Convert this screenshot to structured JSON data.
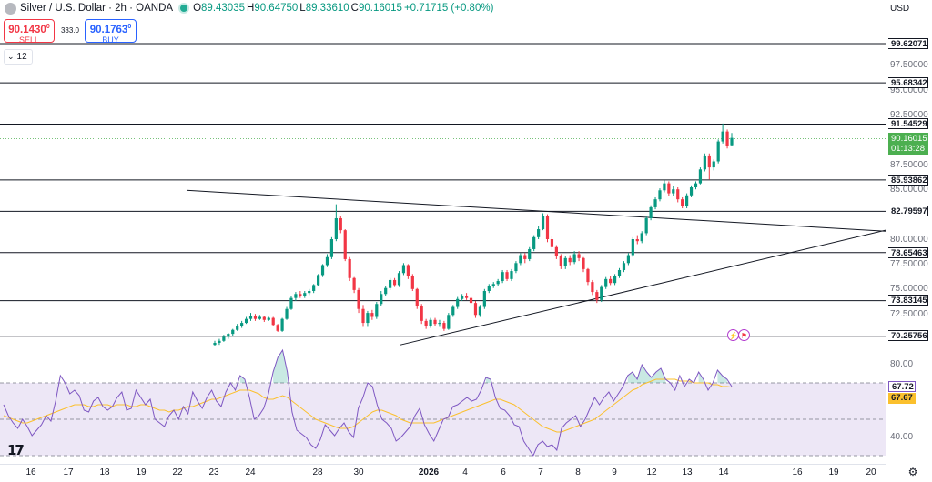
{
  "header": {
    "title": "Silver / U.S. Dollar · 2h · OANDA",
    "ohlc": [
      {
        "key": "O",
        "value": "89.43035"
      },
      {
        "key": "H",
        "value": "90.64750"
      },
      {
        "key": "L",
        "value": "89.33610"
      },
      {
        "key": "C",
        "value": "90.16015"
      }
    ],
    "change": "+0.71715 (+0.80%)"
  },
  "trade": {
    "sell_price": "90.1430",
    "sell_sup": "0",
    "sell_label": "SELL",
    "spread": "333.0",
    "buy_price": "90.1763",
    "buy_sup": "0",
    "buy_label": "BUY"
  },
  "interval_value": "12",
  "currency": "USD",
  "colors": {
    "up": "#089981",
    "down": "#f23645",
    "rsi": "#7e57c2",
    "rsi_ma": "#fbc02d",
    "rsi_band": "#ede7f6",
    "price_tag": "#4caf50"
  },
  "price_axis_labels": [
    "97.50000",
    "95.00000",
    "92.50000",
    "87.50000",
    "85.00000",
    "80.00000",
    "77.50000",
    "75.00000",
    "72.50000"
  ],
  "level_tags": [
    "99.62071",
    "95.68342",
    "91.54529",
    "85.93862",
    "82.79597",
    "78.65463",
    "73.83145",
    "70.25756"
  ],
  "current_price_tag": {
    "price": "90.16015",
    "countdown": "01:13:28"
  },
  "rsi_axis_labels": [
    "80.00",
    "40.00"
  ],
  "rsi_tags": {
    "rsi": "67.72",
    "ma": "67.67"
  },
  "x_axis_labels": [
    "16",
    "17",
    "18",
    "19",
    "22",
    "23",
    "24",
    "28",
    "30",
    "2026",
    "4",
    "6",
    "7",
    "8",
    "9",
    "12",
    "13",
    "14",
    "16",
    "19",
    "20"
  ],
  "chart_data": {
    "type": "candlestick",
    "price_range": [
      69.4,
      101.0
    ],
    "horizontal_levels": [
      99.62071,
      95.68342,
      91.54529,
      85.93862,
      82.79597,
      78.65463,
      73.83145,
      70.25756
    ],
    "trendlines": [
      {
        "name": "",
        "from": [
          "Dec 22",
          84.9
        ],
        "to": [
          "Jan 20",
          80.8
        ]
      },
      {
        "name": "",
        "from": [
          "Dec 30",
          69.4
        ],
        "to": [
          "Jan 20",
          80.9
        ]
      }
    ],
    "candles": [
      {
        "o": 69.4,
        "c": 69.6,
        "h": 69.8,
        "l": 69.3
      },
      {
        "o": 69.6,
        "c": 69.8,
        "h": 70.0,
        "l": 69.4
      },
      {
        "o": 69.8,
        "c": 70.2,
        "h": 70.4,
        "l": 69.7
      },
      {
        "o": 70.2,
        "c": 70.5,
        "h": 70.6,
        "l": 70.0
      },
      {
        "o": 70.5,
        "c": 70.9,
        "h": 71.0,
        "l": 70.3
      },
      {
        "o": 70.9,
        "c": 71.3,
        "h": 71.5,
        "l": 70.8
      },
      {
        "o": 71.3,
        "c": 71.6,
        "h": 71.8,
        "l": 71.1
      },
      {
        "o": 71.6,
        "c": 72.0,
        "h": 72.2,
        "l": 71.5
      },
      {
        "o": 72.0,
        "c": 72.3,
        "h": 72.6,
        "l": 71.8
      },
      {
        "o": 72.3,
        "c": 72.0,
        "h": 72.5,
        "l": 71.8
      },
      {
        "o": 72.0,
        "c": 72.2,
        "h": 72.4,
        "l": 71.9
      },
      {
        "o": 72.2,
        "c": 71.9,
        "h": 72.3,
        "l": 71.7
      },
      {
        "o": 71.9,
        "c": 72.1,
        "h": 72.2,
        "l": 71.8
      },
      {
        "o": 72.1,
        "c": 71.4,
        "h": 72.2,
        "l": 71.3
      },
      {
        "o": 71.4,
        "c": 70.8,
        "h": 71.5,
        "l": 70.7
      },
      {
        "o": 70.8,
        "c": 72.0,
        "h": 72.1,
        "l": 70.7
      },
      {
        "o": 72.0,
        "c": 73.0,
        "h": 73.2,
        "l": 71.9
      },
      {
        "o": 73.0,
        "c": 74.1,
        "h": 74.3,
        "l": 72.9
      },
      {
        "o": 74.1,
        "c": 74.5,
        "h": 74.7,
        "l": 73.8
      },
      {
        "o": 74.5,
        "c": 74.3,
        "h": 74.8,
        "l": 74.1
      },
      {
        "o": 74.3,
        "c": 74.6,
        "h": 74.8,
        "l": 74.1
      },
      {
        "o": 74.6,
        "c": 74.8,
        "h": 75.0,
        "l": 74.4
      },
      {
        "o": 74.8,
        "c": 75.4,
        "h": 75.5,
        "l": 74.6
      },
      {
        "o": 75.4,
        "c": 76.4,
        "h": 76.5,
        "l": 75.3
      },
      {
        "o": 76.4,
        "c": 77.4,
        "h": 77.5,
        "l": 76.2
      },
      {
        "o": 77.4,
        "c": 78.2,
        "h": 78.5,
        "l": 77.2
      },
      {
        "o": 78.2,
        "c": 80.0,
        "h": 80.2,
        "l": 78.0
      },
      {
        "o": 80.0,
        "c": 82.1,
        "h": 83.5,
        "l": 79.8
      },
      {
        "o": 82.1,
        "c": 80.9,
        "h": 82.3,
        "l": 80.6
      },
      {
        "o": 80.9,
        "c": 78.0,
        "h": 81.0,
        "l": 77.8
      },
      {
        "o": 78.0,
        "c": 76.1,
        "h": 78.2,
        "l": 75.8
      },
      {
        "o": 76.1,
        "c": 74.9,
        "h": 76.2,
        "l": 74.6
      },
      {
        "o": 74.9,
        "c": 73.0,
        "h": 75.1,
        "l": 72.6
      },
      {
        "o": 73.0,
        "c": 71.6,
        "h": 73.4,
        "l": 71.2
      },
      {
        "o": 71.6,
        "c": 72.6,
        "h": 72.8,
        "l": 71.2
      },
      {
        "o": 72.6,
        "c": 72.2,
        "h": 72.9,
        "l": 71.9
      },
      {
        "o": 72.2,
        "c": 73.5,
        "h": 73.7,
        "l": 72.0
      },
      {
        "o": 73.5,
        "c": 74.5,
        "h": 74.8,
        "l": 73.3
      },
      {
        "o": 74.5,
        "c": 75.1,
        "h": 75.3,
        "l": 74.3
      },
      {
        "o": 75.1,
        "c": 75.9,
        "h": 76.1,
        "l": 74.9
      },
      {
        "o": 75.9,
        "c": 75.4,
        "h": 76.1,
        "l": 75.2
      },
      {
        "o": 75.4,
        "c": 76.6,
        "h": 76.8,
        "l": 75.2
      },
      {
        "o": 76.6,
        "c": 77.4,
        "h": 77.6,
        "l": 76.4
      },
      {
        "o": 77.4,
        "c": 76.3,
        "h": 77.5,
        "l": 76.0
      },
      {
        "o": 76.3,
        "c": 75.0,
        "h": 76.5,
        "l": 74.8
      },
      {
        "o": 75.0,
        "c": 73.3,
        "h": 75.1,
        "l": 73.0
      },
      {
        "o": 73.3,
        "c": 71.8,
        "h": 73.5,
        "l": 71.5
      },
      {
        "o": 71.8,
        "c": 71.3,
        "h": 72.0,
        "l": 71.0
      },
      {
        "o": 71.3,
        "c": 71.9,
        "h": 72.1,
        "l": 71.1
      },
      {
        "o": 71.9,
        "c": 71.5,
        "h": 72.1,
        "l": 71.3
      },
      {
        "o": 71.5,
        "c": 71.6,
        "h": 71.9,
        "l": 71.2
      },
      {
        "o": 71.6,
        "c": 71.0,
        "h": 71.8,
        "l": 70.8
      },
      {
        "o": 71.0,
        "c": 72.4,
        "h": 72.6,
        "l": 70.9
      },
      {
        "o": 72.4,
        "c": 73.2,
        "h": 73.4,
        "l": 72.2
      },
      {
        "o": 73.2,
        "c": 74.0,
        "h": 74.2,
        "l": 73.0
      },
      {
        "o": 74.0,
        "c": 74.3,
        "h": 74.5,
        "l": 73.8
      },
      {
        "o": 74.3,
        "c": 74.1,
        "h": 74.6,
        "l": 73.9
      },
      {
        "o": 74.1,
        "c": 73.6,
        "h": 74.3,
        "l": 73.3
      },
      {
        "o": 73.6,
        "c": 72.4,
        "h": 73.8,
        "l": 72.1
      },
      {
        "o": 72.4,
        "c": 73.2,
        "h": 73.4,
        "l": 72.2
      },
      {
        "o": 73.2,
        "c": 74.8,
        "h": 75.0,
        "l": 73.0
      },
      {
        "o": 74.8,
        "c": 75.3,
        "h": 75.5,
        "l": 74.6
      },
      {
        "o": 75.3,
        "c": 75.5,
        "h": 75.7,
        "l": 75.1
      },
      {
        "o": 75.5,
        "c": 75.8,
        "h": 76.0,
        "l": 75.3
      },
      {
        "o": 75.8,
        "c": 76.7,
        "h": 76.9,
        "l": 75.6
      },
      {
        "o": 76.7,
        "c": 76.0,
        "h": 76.9,
        "l": 75.8
      },
      {
        "o": 76.0,
        "c": 76.8,
        "h": 77.0,
        "l": 75.8
      },
      {
        "o": 76.8,
        "c": 77.6,
        "h": 77.8,
        "l": 76.6
      },
      {
        "o": 77.6,
        "c": 78.4,
        "h": 78.6,
        "l": 77.4
      },
      {
        "o": 78.4,
        "c": 78.0,
        "h": 78.6,
        "l": 77.6
      },
      {
        "o": 78.0,
        "c": 79.0,
        "h": 79.2,
        "l": 77.8
      },
      {
        "o": 79.0,
        "c": 80.2,
        "h": 80.4,
        "l": 78.8
      },
      {
        "o": 80.2,
        "c": 81.0,
        "h": 81.3,
        "l": 80.0
      },
      {
        "o": 81.0,
        "c": 82.3,
        "h": 82.6,
        "l": 80.9
      },
      {
        "o": 82.3,
        "c": 80.0,
        "h": 82.5,
        "l": 79.7
      },
      {
        "o": 80.0,
        "c": 79.2,
        "h": 80.3,
        "l": 78.9
      },
      {
        "o": 79.2,
        "c": 78.3,
        "h": 79.4,
        "l": 78.0
      },
      {
        "o": 78.3,
        "c": 77.3,
        "h": 78.5,
        "l": 77.0
      },
      {
        "o": 77.3,
        "c": 78.1,
        "h": 78.3,
        "l": 77.0
      },
      {
        "o": 78.1,
        "c": 77.7,
        "h": 78.4,
        "l": 77.4
      },
      {
        "o": 77.7,
        "c": 78.5,
        "h": 78.8,
        "l": 77.5
      },
      {
        "o": 78.5,
        "c": 78.1,
        "h": 78.8,
        "l": 77.8
      },
      {
        "o": 78.1,
        "c": 77.0,
        "h": 78.2,
        "l": 76.7
      },
      {
        "o": 77.0,
        "c": 75.7,
        "h": 77.1,
        "l": 75.4
      },
      {
        "o": 75.7,
        "c": 74.7,
        "h": 75.9,
        "l": 74.4
      },
      {
        "o": 74.7,
        "c": 73.9,
        "h": 74.9,
        "l": 73.6
      },
      {
        "o": 73.9,
        "c": 75.2,
        "h": 75.4,
        "l": 73.7
      },
      {
        "o": 75.2,
        "c": 76.0,
        "h": 76.2,
        "l": 75.0
      },
      {
        "o": 76.0,
        "c": 75.6,
        "h": 76.3,
        "l": 75.4
      },
      {
        "o": 75.6,
        "c": 76.3,
        "h": 76.5,
        "l": 75.4
      },
      {
        "o": 76.3,
        "c": 76.9,
        "h": 77.1,
        "l": 76.1
      },
      {
        "o": 76.9,
        "c": 77.6,
        "h": 77.8,
        "l": 76.7
      },
      {
        "o": 77.6,
        "c": 78.4,
        "h": 78.6,
        "l": 77.4
      },
      {
        "o": 78.4,
        "c": 80.0,
        "h": 80.2,
        "l": 78.2
      },
      {
        "o": 80.0,
        "c": 79.8,
        "h": 80.4,
        "l": 79.5
      },
      {
        "o": 79.8,
        "c": 80.6,
        "h": 80.8,
        "l": 79.6
      },
      {
        "o": 80.6,
        "c": 82.1,
        "h": 82.3,
        "l": 80.4
      },
      {
        "o": 82.1,
        "c": 83.2,
        "h": 83.4,
        "l": 81.9
      },
      {
        "o": 83.2,
        "c": 84.0,
        "h": 84.2,
        "l": 83.0
      },
      {
        "o": 84.0,
        "c": 84.9,
        "h": 85.1,
        "l": 83.8
      },
      {
        "o": 84.9,
        "c": 85.6,
        "h": 85.9,
        "l": 84.7
      },
      {
        "o": 85.6,
        "c": 84.6,
        "h": 85.8,
        "l": 84.3
      },
      {
        "o": 84.6,
        "c": 85.0,
        "h": 85.3,
        "l": 84.3
      },
      {
        "o": 85.0,
        "c": 84.0,
        "h": 85.2,
        "l": 83.7
      },
      {
        "o": 84.0,
        "c": 83.3,
        "h": 84.2,
        "l": 83.1
      },
      {
        "o": 83.3,
        "c": 84.4,
        "h": 84.6,
        "l": 83.1
      },
      {
        "o": 84.4,
        "c": 85.2,
        "h": 85.4,
        "l": 84.2
      },
      {
        "o": 85.2,
        "c": 85.6,
        "h": 85.8,
        "l": 85.0
      },
      {
        "o": 85.6,
        "c": 87.0,
        "h": 87.2,
        "l": 85.5
      },
      {
        "o": 87.0,
        "c": 88.4,
        "h": 88.6,
        "l": 86.8
      },
      {
        "o": 88.4,
        "c": 87.2,
        "h": 88.6,
        "l": 86.0
      },
      {
        "o": 87.2,
        "c": 87.8,
        "h": 88.0,
        "l": 86.9
      },
      {
        "o": 87.8,
        "c": 89.8,
        "h": 90.0,
        "l": 87.6
      },
      {
        "o": 89.8,
        "c": 90.8,
        "h": 91.6,
        "l": 89.6
      },
      {
        "o": 90.8,
        "c": 89.4,
        "h": 91.0,
        "l": 89.1
      },
      {
        "o": 89.43,
        "c": 90.16,
        "h": 90.65,
        "l": 89.34
      }
    ],
    "rsi": [
      58,
      52,
      48,
      45,
      50,
      46,
      41,
      44,
      47,
      52,
      49,
      60,
      74,
      70,
      64,
      66,
      63,
      55,
      54,
      60,
      62,
      57,
      55,
      57,
      62,
      65,
      55,
      56,
      66,
      62,
      58,
      61,
      50,
      48,
      46,
      52,
      55,
      50,
      57,
      53,
      65,
      60,
      56,
      62,
      66,
      60,
      57,
      65,
      70,
      66,
      74,
      72,
      62,
      50,
      52,
      56,
      64,
      76,
      84,
      88,
      76,
      54,
      44,
      42,
      40,
      36,
      34,
      39,
      47,
      44,
      41,
      45,
      48,
      43,
      40,
      56,
      62,
      70,
      68,
      58,
      50,
      48,
      45,
      38,
      40,
      43,
      46,
      52,
      56,
      47,
      42,
      38,
      44,
      50,
      51,
      57,
      58,
      60,
      62,
      60,
      61,
      66,
      73,
      72,
      62,
      56,
      55,
      52,
      47,
      46,
      38,
      34,
      30,
      36,
      38,
      35,
      36,
      33,
      45,
      48,
      50,
      52,
      46,
      50,
      56,
      62,
      58,
      62,
      65,
      60,
      64,
      68,
      74,
      76,
      72,
      80,
      76,
      73,
      76,
      78,
      72,
      70,
      66,
      74,
      68,
      72,
      70,
      76,
      72,
      66,
      70,
      77,
      74,
      72,
      68
    ],
    "rsi_ma": [
      52,
      51,
      50,
      49,
      48,
      48,
      49,
      50,
      51,
      52,
      53,
      54,
      55,
      56,
      57,
      58,
      58,
      58,
      57,
      57,
      58,
      58,
      58,
      57,
      58,
      58,
      58,
      57,
      57,
      58,
      58,
      57,
      56,
      55,
      55,
      54,
      55,
      55,
      56,
      57,
      57,
      58,
      59,
      60,
      61,
      61,
      62,
      63,
      64,
      65,
      66,
      66,
      66,
      65,
      64,
      62,
      61,
      61,
      62,
      63,
      62,
      60,
      58,
      56,
      54,
      52,
      50,
      49,
      48,
      47,
      46,
      45,
      45,
      45,
      46,
      48,
      50,
      52,
      54,
      55,
      55,
      54,
      53,
      52,
      50,
      49,
      48,
      48,
      48,
      48,
      48,
      48,
      49,
      50,
      51,
      52,
      53,
      54,
      55,
      56,
      57,
      58,
      59,
      60,
      61,
      61,
      60,
      59,
      58,
      56,
      54,
      52,
      50,
      48,
      46,
      45,
      44,
      43,
      43,
      44,
      45,
      46,
      47,
      48,
      49,
      50,
      52,
      54,
      56,
      58,
      60,
      62,
      64,
      66,
      67,
      69,
      70,
      71,
      72,
      72,
      72,
      72,
      72,
      71,
      71,
      71,
      70,
      70,
      70,
      70,
      69,
      69,
      68,
      68,
      67.7
    ],
    "rsi_range": [
      30,
      90
    ],
    "rsi_levels": [
      70,
      50,
      30
    ]
  }
}
